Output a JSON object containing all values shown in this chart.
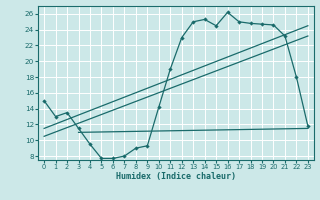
{
  "xlabel": "Humidex (Indice chaleur)",
  "bg_color": "#cce8e8",
  "line_color": "#1a6b6b",
  "grid_color": "#ffffff",
  "xlim": [
    -0.5,
    23.5
  ],
  "ylim": [
    7.5,
    27
  ],
  "xticks": [
    0,
    1,
    2,
    3,
    4,
    5,
    6,
    7,
    8,
    9,
    10,
    11,
    12,
    13,
    14,
    15,
    16,
    17,
    18,
    19,
    20,
    21,
    22,
    23
  ],
  "yticks": [
    8,
    10,
    12,
    14,
    16,
    18,
    20,
    22,
    24,
    26
  ],
  "curve1_x": [
    0,
    1,
    2,
    3,
    4,
    5,
    6,
    7,
    8,
    9,
    10,
    11,
    12,
    13,
    14,
    15,
    16,
    17,
    18,
    19,
    20,
    21,
    22,
    23
  ],
  "curve1_y": [
    15.0,
    13.0,
    13.5,
    11.5,
    9.5,
    7.7,
    7.7,
    8.0,
    9.0,
    9.3,
    14.2,
    19.0,
    23.0,
    25.0,
    25.3,
    24.5,
    26.2,
    25.0,
    24.8,
    24.7,
    24.6,
    23.2,
    18.0,
    11.8
  ],
  "line1_x": [
    0,
    23
  ],
  "line1_y": [
    11.5,
    24.5
  ],
  "line2_x": [
    0,
    23
  ],
  "line2_y": [
    10.5,
    23.2
  ],
  "line3_x": [
    3,
    23
  ],
  "line3_y": [
    11.0,
    11.5
  ]
}
